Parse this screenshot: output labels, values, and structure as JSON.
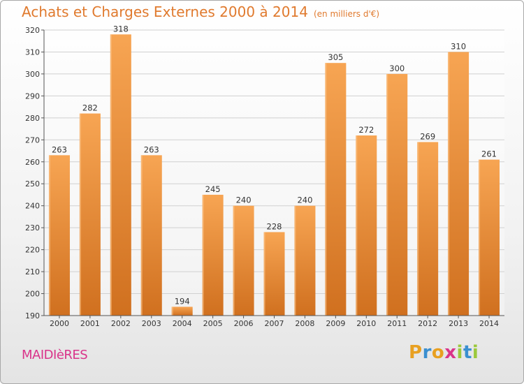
{
  "title": "Achats et Charges Externes 2000 à 2014",
  "unit_label": "(en milliers d'€)",
  "commune": "MAIDIèRES",
  "logo": {
    "letters": [
      "P",
      "r",
      "o",
      "x",
      "i",
      "t",
      "i"
    ],
    "colors": [
      "#e8a021",
      "#3a8fd0",
      "#e8a021",
      "#d9348a",
      "#9cc93c",
      "#3a8fd0",
      "#9cc93c"
    ]
  },
  "chart_data": {
    "type": "bar",
    "title": "Achats et Charges Externes 2000 à 2014",
    "xlabel": "",
    "ylabel": "",
    "categories": [
      "2000",
      "2001",
      "2002",
      "2003",
      "2004",
      "2005",
      "2006",
      "2007",
      "2008",
      "2009",
      "2010",
      "2011",
      "2012",
      "2013",
      "2014"
    ],
    "values": [
      263,
      282,
      318,
      263,
      194,
      245,
      240,
      228,
      240,
      305,
      272,
      300,
      269,
      310,
      261
    ],
    "ylim": [
      190,
      320
    ],
    "yticks": [
      190,
      200,
      210,
      220,
      230,
      240,
      250,
      260,
      270,
      280,
      290,
      300,
      310,
      320
    ],
    "grid": true,
    "bar_color": "#f5a04a",
    "bar_color_dark": "#d4711e",
    "data_labels": true
  }
}
